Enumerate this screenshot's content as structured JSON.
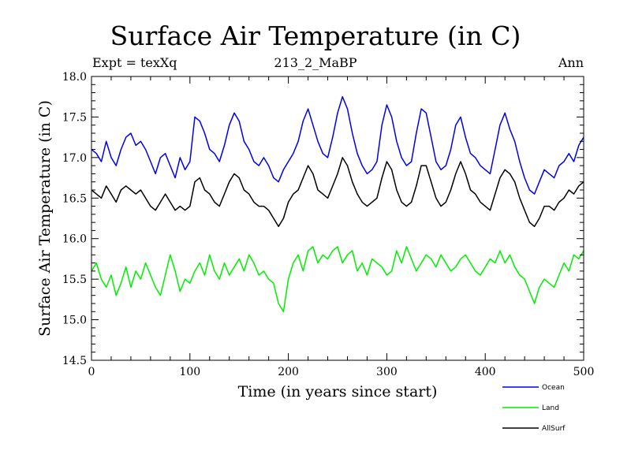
{
  "header": {
    "title": "Surface Air Temperature (in C)",
    "expt_label": "Expt = texXq",
    "run_label": "213_2_MaBP",
    "season_label": "Ann"
  },
  "chart_data": {
    "type": "line",
    "title": "Surface Air Temperature (in C)",
    "xlabel": "Time (in years since start)",
    "ylabel": "Surface Air Temperature (in C)",
    "xlim": [
      0,
      500
    ],
    "ylim": [
      14.5,
      18.0
    ],
    "x_ticks": [
      0,
      100,
      200,
      300,
      400,
      500
    ],
    "x_tick_labels": [
      "0",
      "100",
      "200",
      "300",
      "400",
      "500"
    ],
    "y_ticks": [
      14.5,
      15.0,
      15.5,
      16.0,
      16.5,
      17.0,
      17.5,
      18.0
    ],
    "y_tick_labels": [
      "14.5",
      "15.0",
      "15.5",
      "16.0",
      "16.5",
      "17.0",
      "17.5",
      "18.0"
    ],
    "legend_position": "bottom-right, outside plot",
    "sample_step_years": 5,
    "series": [
      {
        "name": "Ocean",
        "color": "#0000ee",
        "x_start": 0,
        "values": [
          17.1,
          17.05,
          16.95,
          17.2,
          17.0,
          16.9,
          17.1,
          17.25,
          17.3,
          17.15,
          17.2,
          17.1,
          16.95,
          16.8,
          17.0,
          17.05,
          16.9,
          16.75,
          17.0,
          16.85,
          16.95,
          17.5,
          17.45,
          17.3,
          17.1,
          17.05,
          16.95,
          17.15,
          17.4,
          17.55,
          17.45,
          17.2,
          17.1,
          16.95,
          16.9,
          17.0,
          16.9,
          16.75,
          16.7,
          16.85,
          16.95,
          17.05,
          17.2,
          17.45,
          17.6,
          17.4,
          17.2,
          17.05,
          17.0,
          17.25,
          17.55,
          17.75,
          17.6,
          17.3,
          17.05,
          16.9,
          16.8,
          16.85,
          16.95,
          17.4,
          17.65,
          17.5,
          17.2,
          17.0,
          16.9,
          16.95,
          17.3,
          17.6,
          17.55,
          17.25,
          16.95,
          16.85,
          16.9,
          17.1,
          17.4,
          17.5,
          17.25,
          17.05,
          17.0,
          16.9,
          16.85,
          16.8,
          17.1,
          17.4,
          17.55,
          17.35,
          17.2,
          16.95,
          16.75,
          16.6,
          16.55,
          16.7,
          16.85,
          16.8,
          16.75,
          16.9,
          16.95,
          17.05,
          16.95,
          17.15,
          17.25
        ]
      },
      {
        "name": "Land",
        "color": "#00ee00",
        "x_start": 0,
        "values": [
          15.6,
          15.7,
          15.5,
          15.4,
          15.55,
          15.3,
          15.45,
          15.65,
          15.4,
          15.6,
          15.5,
          15.7,
          15.55,
          15.4,
          15.3,
          15.55,
          15.8,
          15.6,
          15.35,
          15.5,
          15.45,
          15.6,
          15.7,
          15.55,
          15.8,
          15.6,
          15.5,
          15.7,
          15.55,
          15.65,
          15.75,
          15.6,
          15.8,
          15.7,
          15.55,
          15.6,
          15.5,
          15.45,
          15.2,
          15.1,
          15.5,
          15.7,
          15.8,
          15.6,
          15.85,
          15.9,
          15.7,
          15.8,
          15.75,
          15.85,
          15.9,
          15.7,
          15.8,
          15.85,
          15.6,
          15.7,
          15.55,
          15.75,
          15.7,
          15.65,
          15.55,
          15.6,
          15.85,
          15.7,
          15.9,
          15.75,
          15.6,
          15.7,
          15.8,
          15.75,
          15.65,
          15.8,
          15.7,
          15.6,
          15.65,
          15.75,
          15.8,
          15.7,
          15.6,
          15.55,
          15.65,
          15.75,
          15.7,
          15.85,
          15.7,
          15.8,
          15.65,
          15.55,
          15.5,
          15.35,
          15.2,
          15.4,
          15.5,
          15.45,
          15.4,
          15.55,
          15.7,
          15.6,
          15.8,
          15.75,
          15.85
        ]
      },
      {
        "name": "AllSurf",
        "color": "#000000",
        "x_start": 0,
        "values": [
          16.6,
          16.55,
          16.5,
          16.65,
          16.55,
          16.45,
          16.6,
          16.65,
          16.6,
          16.55,
          16.6,
          16.5,
          16.4,
          16.35,
          16.45,
          16.55,
          16.45,
          16.35,
          16.4,
          16.35,
          16.4,
          16.7,
          16.75,
          16.6,
          16.55,
          16.45,
          16.4,
          16.55,
          16.7,
          16.8,
          16.75,
          16.6,
          16.55,
          16.45,
          16.4,
          16.4,
          16.35,
          16.25,
          16.15,
          16.25,
          16.45,
          16.55,
          16.6,
          16.75,
          16.9,
          16.8,
          16.6,
          16.55,
          16.5,
          16.65,
          16.8,
          17.0,
          16.9,
          16.7,
          16.55,
          16.45,
          16.4,
          16.45,
          16.5,
          16.75,
          16.95,
          16.85,
          16.6,
          16.45,
          16.4,
          16.45,
          16.65,
          16.9,
          16.9,
          16.7,
          16.5,
          16.4,
          16.45,
          16.6,
          16.8,
          16.95,
          16.8,
          16.6,
          16.55,
          16.45,
          16.4,
          16.35,
          16.55,
          16.75,
          16.85,
          16.8,
          16.7,
          16.5,
          16.35,
          16.2,
          16.15,
          16.25,
          16.4,
          16.4,
          16.35,
          16.45,
          16.5,
          16.6,
          16.55,
          16.65,
          16.7
        ]
      }
    ]
  }
}
